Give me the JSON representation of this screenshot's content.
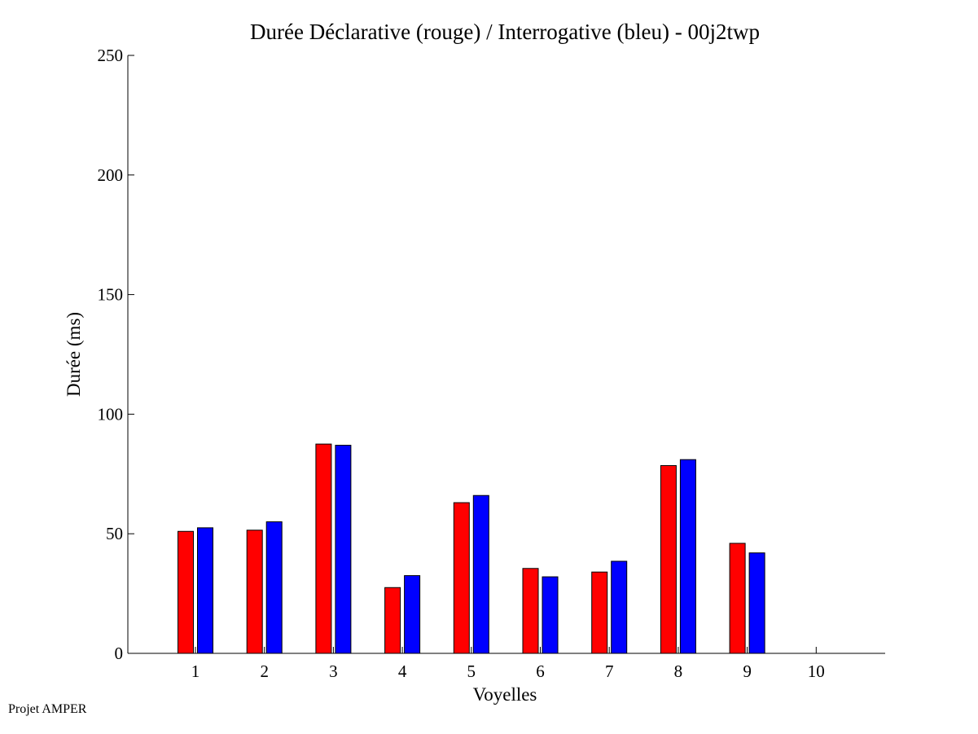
{
  "chart_data": {
    "type": "bar",
    "title": "Durée Déclarative (rouge) / Interrogative (bleu) - 00j2twp",
    "xlabel": "Voyelles",
    "ylabel": "Durée (ms)",
    "categories": [
      "1",
      "2",
      "3",
      "4",
      "5",
      "6",
      "7",
      "8",
      "9",
      "10"
    ],
    "ylim": [
      0,
      250
    ],
    "yticks": [
      0,
      50,
      100,
      150,
      200,
      250
    ],
    "grid": false,
    "series": [
      {
        "color": "#ff0000",
        "values": [
          51,
          51.5,
          87.5,
          27.5,
          63,
          35.5,
          34,
          78.5,
          46,
          0
        ]
      },
      {
        "color": "#0000ff",
        "values": [
          52.5,
          55,
          87,
          32.5,
          66,
          32,
          38.5,
          81,
          42,
          0
        ]
      }
    ]
  },
  "footer": {
    "text": "Projet AMPER"
  }
}
